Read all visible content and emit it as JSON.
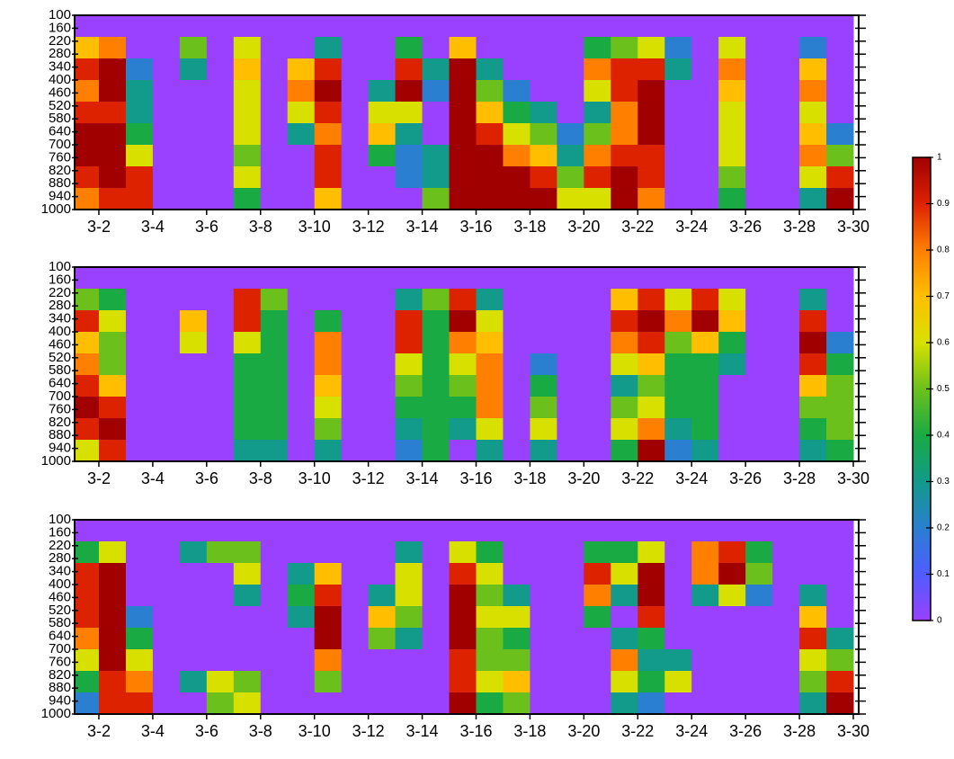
{
  "chart_data": [
    {
      "type": "heatmap",
      "x": [
        1.5,
        2.5,
        3.5,
        4.5,
        5.5,
        6.5,
        7.5,
        8.5,
        9.5,
        10.5,
        11.5,
        12.5,
        13.5,
        14.5,
        15.5,
        16.5,
        17.5,
        18.5,
        19.5,
        20.5,
        21.5,
        22.5,
        23.5,
        24.5,
        25.5,
        26.5,
        27.5,
        28.5,
        29.5
      ],
      "y": [
        150,
        250,
        350,
        450,
        550,
        650,
        750,
        850,
        950
      ],
      "z": [
        [
          0,
          0,
          0,
          0,
          0,
          0,
          0,
          0,
          0,
          0,
          0,
          0,
          0,
          0,
          0,
          0,
          0,
          0,
          0,
          0,
          0,
          0,
          0,
          0,
          0,
          0,
          0,
          0,
          0
        ],
        [
          0.7,
          0.8,
          0,
          0,
          0.5,
          0,
          0.6,
          0,
          0,
          0.3,
          0,
          0,
          0.4,
          0,
          0.7,
          0,
          0,
          0,
          0,
          0.4,
          0.5,
          0.6,
          0.2,
          0,
          0.6,
          0,
          0,
          0.2,
          0
        ],
        [
          0.9,
          1,
          0.2,
          0,
          0.3,
          0,
          0.7,
          0,
          0.7,
          0.9,
          0,
          0,
          0.9,
          0.3,
          1,
          0.3,
          0,
          0,
          0,
          0.8,
          0.9,
          0.9,
          0.3,
          0,
          0.8,
          0,
          0,
          0.7,
          0
        ],
        [
          0.8,
          1,
          0.3,
          0,
          0,
          0,
          0.6,
          0,
          0.8,
          1,
          0,
          0.3,
          1,
          0.2,
          1,
          0.5,
          0.2,
          0,
          0,
          0.6,
          0.9,
          1,
          0,
          0,
          0.7,
          0,
          0,
          0.8,
          0
        ],
        [
          0.9,
          0.9,
          0.3,
          0,
          0,
          0,
          0.6,
          0,
          0.6,
          0.9,
          0,
          0.6,
          0.6,
          0,
          1,
          0.7,
          0.4,
          0.3,
          0,
          0.3,
          0.8,
          1,
          0,
          0,
          0.6,
          0,
          0,
          0.6,
          0
        ],
        [
          1,
          1,
          0.4,
          0,
          0,
          0,
          0.6,
          0,
          0.3,
          0.8,
          0,
          0.7,
          0.3,
          0,
          1,
          0.9,
          0.6,
          0.5,
          0.2,
          0.5,
          0.8,
          1,
          0,
          0,
          0.6,
          0,
          0,
          0.7,
          0.2
        ],
        [
          1,
          1,
          0.6,
          0,
          0,
          0,
          0.5,
          0,
          0,
          0.9,
          0,
          0.4,
          0.2,
          0.3,
          1,
          1,
          0.8,
          0.7,
          0.3,
          0.8,
          0.9,
          0.9,
          0,
          0,
          0.6,
          0,
          0,
          0.8,
          0.5
        ],
        [
          0.9,
          1,
          0.9,
          0,
          0,
          0,
          0.6,
          0,
          0,
          0.9,
          0,
          0,
          0.2,
          0.3,
          1,
          1,
          1,
          0.9,
          0.5,
          0.9,
          1,
          0.9,
          0,
          0,
          0.5,
          0,
          0,
          0.6,
          0.9
        ],
        [
          0.8,
          0.9,
          0.9,
          0,
          0,
          0,
          0.4,
          0,
          0,
          0.7,
          0,
          0,
          0,
          0.5,
          1,
          1,
          1,
          1,
          0.6,
          0.6,
          1,
          0.8,
          0,
          0,
          0.4,
          0,
          0,
          0.3,
          1
        ]
      ],
      "xlim": [
        1.1,
        30.2
      ],
      "ylim": [
        1000,
        100
      ],
      "xticks": [
        {
          "value": 2,
          "label": "3-2"
        },
        {
          "value": 4,
          "label": "3-4"
        },
        {
          "value": 6,
          "label": "3-6"
        },
        {
          "value": 8,
          "label": "3-8"
        },
        {
          "value": 10,
          "label": "3-10"
        },
        {
          "value": 12,
          "label": "3-12"
        },
        {
          "value": 14,
          "label": "3-14"
        },
        {
          "value": 16,
          "label": "3-16"
        },
        {
          "value": 18,
          "label": "3-18"
        },
        {
          "value": 20,
          "label": "3-20"
        },
        {
          "value": 22,
          "label": "3-22"
        },
        {
          "value": 24,
          "label": "3-24"
        },
        {
          "value": 26,
          "label": "3-26"
        },
        {
          "value": 28,
          "label": "3-28"
        },
        {
          "value": 30,
          "label": "3-30"
        }
      ],
      "yticks": [
        100,
        160,
        220,
        280,
        340,
        400,
        460,
        520,
        580,
        640,
        700,
        760,
        820,
        880,
        940,
        1000
      ]
    },
    {
      "type": "heatmap",
      "x": [
        1.5,
        2.5,
        3.5,
        4.5,
        5.5,
        6.5,
        7.5,
        8.5,
        9.5,
        10.5,
        11.5,
        12.5,
        13.5,
        14.5,
        15.5,
        16.5,
        17.5,
        18.5,
        19.5,
        20.5,
        21.5,
        22.5,
        23.5,
        24.5,
        25.5,
        26.5,
        27.5,
        28.5,
        29.5
      ],
      "y": [
        150,
        250,
        350,
        450,
        550,
        650,
        750,
        850,
        950
      ],
      "z": [
        [
          0,
          0,
          0,
          0,
          0,
          0,
          0,
          0,
          0,
          0,
          0,
          0,
          0,
          0,
          0,
          0,
          0,
          0,
          0,
          0,
          0,
          0,
          0,
          0,
          0,
          0,
          0,
          0,
          0
        ],
        [
          0.5,
          0.4,
          0,
          0,
          0,
          0,
          0.9,
          0.5,
          0,
          0,
          0,
          0,
          0.3,
          0.5,
          0.9,
          0.3,
          0,
          0,
          0,
          0,
          0.7,
          0.9,
          0.6,
          0.9,
          0.6,
          0,
          0,
          0.3,
          0
        ],
        [
          0.9,
          0.6,
          0,
          0,
          0.7,
          0,
          0.9,
          0.4,
          0,
          0.4,
          0,
          0,
          0.9,
          0.4,
          1,
          0.6,
          0,
          0,
          0,
          0,
          0.9,
          1,
          0.8,
          1,
          0.7,
          0,
          0,
          0.9,
          0
        ],
        [
          0.7,
          0.5,
          0,
          0,
          0.6,
          0,
          0.6,
          0.4,
          0,
          0.8,
          0,
          0,
          0.9,
          0.4,
          0.8,
          0.7,
          0,
          0,
          0,
          0,
          0.8,
          0.9,
          0.5,
          0.7,
          0.4,
          0,
          0,
          1,
          0.2
        ],
        [
          0.8,
          0.5,
          0,
          0,
          0,
          0,
          0.4,
          0.4,
          0,
          0.8,
          0,
          0,
          0.6,
          0.4,
          0.6,
          0.8,
          0,
          0.2,
          0,
          0,
          0.6,
          0.7,
          0.4,
          0.4,
          0.3,
          0,
          0,
          0.9,
          0.4
        ],
        [
          0.9,
          0.7,
          0,
          0,
          0,
          0,
          0.4,
          0.4,
          0,
          0.7,
          0,
          0,
          0.5,
          0.4,
          0.5,
          0.8,
          0,
          0.4,
          0,
          0,
          0.3,
          0.5,
          0.4,
          0.4,
          0,
          0,
          0,
          0.7,
          0.5
        ],
        [
          1,
          0.9,
          0,
          0,
          0,
          0,
          0.4,
          0.4,
          0,
          0.6,
          0,
          0,
          0.4,
          0.4,
          0.4,
          0.8,
          0,
          0.5,
          0,
          0,
          0.5,
          0.6,
          0.4,
          0.4,
          0,
          0,
          0,
          0.5,
          0.5
        ],
        [
          0.9,
          1,
          0,
          0,
          0,
          0,
          0.4,
          0.4,
          0,
          0.5,
          0,
          0,
          0.3,
          0.4,
          0.3,
          0.6,
          0,
          0.6,
          0,
          0,
          0.6,
          0.8,
          0.3,
          0.4,
          0,
          0,
          0,
          0.4,
          0.5
        ],
        [
          0.6,
          0.9,
          0,
          0,
          0,
          0,
          0.3,
          0.3,
          0,
          0.3,
          0,
          0,
          0.2,
          0.4,
          0,
          0.3,
          0,
          0.3,
          0,
          0,
          0.4,
          1,
          0.2,
          0.3,
          0,
          0,
          0,
          0.3,
          0.4
        ]
      ],
      "xlim": [
        1.1,
        30.2
      ],
      "ylim": [
        1000,
        100
      ],
      "xticks": [
        {
          "value": 2,
          "label": "3-2"
        },
        {
          "value": 4,
          "label": "3-4"
        },
        {
          "value": 6,
          "label": "3-6"
        },
        {
          "value": 8,
          "label": "3-8"
        },
        {
          "value": 10,
          "label": "3-10"
        },
        {
          "value": 12,
          "label": "3-12"
        },
        {
          "value": 14,
          "label": "3-14"
        },
        {
          "value": 16,
          "label": "3-16"
        },
        {
          "value": 18,
          "label": "3-18"
        },
        {
          "value": 20,
          "label": "3-20"
        },
        {
          "value": 22,
          "label": "3-22"
        },
        {
          "value": 24,
          "label": "3-24"
        },
        {
          "value": 26,
          "label": "3-26"
        },
        {
          "value": 28,
          "label": "3-28"
        },
        {
          "value": 30,
          "label": "3-30"
        }
      ],
      "yticks": [
        100,
        160,
        220,
        280,
        340,
        400,
        460,
        520,
        580,
        640,
        700,
        760,
        820,
        880,
        940,
        1000
      ]
    },
    {
      "type": "heatmap",
      "x": [
        1.5,
        2.5,
        3.5,
        4.5,
        5.5,
        6.5,
        7.5,
        8.5,
        9.5,
        10.5,
        11.5,
        12.5,
        13.5,
        14.5,
        15.5,
        16.5,
        17.5,
        18.5,
        19.5,
        20.5,
        21.5,
        22.5,
        23.5,
        24.5,
        25.5,
        26.5,
        27.5,
        28.5,
        29.5
      ],
      "y": [
        150,
        250,
        350,
        450,
        550,
        650,
        750,
        850,
        950
      ],
      "z": [
        [
          0,
          0,
          0,
          0,
          0,
          0,
          0,
          0,
          0,
          0,
          0,
          0,
          0,
          0,
          0,
          0,
          0,
          0,
          0,
          0,
          0,
          0,
          0,
          0,
          0,
          0,
          0,
          0,
          0
        ],
        [
          0.4,
          0.6,
          0,
          0,
          0.3,
          0.5,
          0.5,
          0,
          0,
          0,
          0,
          0,
          0.3,
          0,
          0.6,
          0.4,
          0,
          0,
          0,
          0.4,
          0.4,
          0.6,
          0,
          0.8,
          0.9,
          0.4,
          0,
          0,
          0
        ],
        [
          0.9,
          1,
          0,
          0,
          0,
          0,
          0.6,
          0,
          0.3,
          0.7,
          0,
          0,
          0.6,
          0,
          0.9,
          0.6,
          0,
          0,
          0,
          0.9,
          0.6,
          1,
          0,
          0.8,
          1,
          0.5,
          0,
          0,
          0
        ],
        [
          0.9,
          1,
          0,
          0,
          0,
          0,
          0.3,
          0,
          0.4,
          0.9,
          0,
          0.3,
          0.6,
          0,
          1,
          0.5,
          0.3,
          0,
          0,
          0.8,
          0.3,
          1,
          0,
          0.3,
          0.6,
          0.2,
          0,
          0.3,
          0
        ],
        [
          0.9,
          1,
          0.2,
          0,
          0,
          0,
          0,
          0,
          0.3,
          1,
          0,
          0.7,
          0.5,
          0,
          1,
          0.6,
          0.6,
          0,
          0,
          0.4,
          0,
          0.9,
          0,
          0,
          0,
          0,
          0,
          0.7,
          0
        ],
        [
          0.8,
          1,
          0.4,
          0,
          0,
          0,
          0,
          0,
          0,
          1,
          0,
          0.5,
          0.3,
          0,
          1,
          0.5,
          0.4,
          0,
          0,
          0,
          0.3,
          0.4,
          0,
          0,
          0,
          0,
          0,
          0.9,
          0.3
        ],
        [
          0.6,
          1,
          0.6,
          0,
          0,
          0,
          0,
          0,
          0,
          0.8,
          0,
          0,
          0,
          0,
          0.9,
          0.5,
          0.5,
          0,
          0,
          0,
          0.8,
          0.3,
          0.3,
          0,
          0,
          0,
          0,
          0.6,
          0.5
        ],
        [
          0.4,
          0.9,
          0.8,
          0,
          0.3,
          0.6,
          0.5,
          0,
          0,
          0.5,
          0,
          0,
          0,
          0,
          0.9,
          0.6,
          0.7,
          0,
          0,
          0,
          0.6,
          0.4,
          0.6,
          0,
          0,
          0,
          0,
          0.5,
          0.9
        ],
        [
          0.2,
          0.9,
          0.9,
          0,
          0,
          0.5,
          0.6,
          0,
          0,
          0,
          0,
          0,
          0,
          0,
          1,
          0.4,
          0.5,
          0,
          0,
          0,
          0.3,
          0.2,
          0,
          0,
          0,
          0,
          0,
          0.3,
          1
        ]
      ],
      "xlim": [
        1.1,
        30.2
      ],
      "ylim": [
        1000,
        100
      ],
      "xticks": [
        {
          "value": 2,
          "label": "3-2"
        },
        {
          "value": 4,
          "label": "3-4"
        },
        {
          "value": 6,
          "label": "3-6"
        },
        {
          "value": 8,
          "label": "3-8"
        },
        {
          "value": 10,
          "label": "3-10"
        },
        {
          "value": 12,
          "label": "3-12"
        },
        {
          "value": 14,
          "label": "3-14"
        },
        {
          "value": 16,
          "label": "3-16"
        },
        {
          "value": 18,
          "label": "3-18"
        },
        {
          "value": 20,
          "label": "3-20"
        },
        {
          "value": 22,
          "label": "3-22"
        },
        {
          "value": 24,
          "label": "3-24"
        },
        {
          "value": 26,
          "label": "3-26"
        },
        {
          "value": 28,
          "label": "3-28"
        },
        {
          "value": 30,
          "label": "3-30"
        }
      ],
      "yticks": [
        100,
        160,
        220,
        280,
        340,
        400,
        460,
        520,
        580,
        640,
        700,
        760,
        820,
        880,
        940,
        1000
      ]
    },
    {
      "type": "colorbar",
      "ylim": [
        0,
        1
      ],
      "yticks": [
        0,
        0.1,
        0.2,
        0.3,
        0.4,
        0.5,
        0.6,
        0.7,
        0.8,
        0.9,
        1
      ],
      "colors": [
        "#9a40ff",
        "#4f5cff",
        "#2a7fd0",
        "#129a8a",
        "#1aaa44",
        "#6cc01c",
        "#d8e000",
        "#ffbf00",
        "#ff7f00",
        "#dd2200",
        "#a00000"
      ]
    }
  ]
}
